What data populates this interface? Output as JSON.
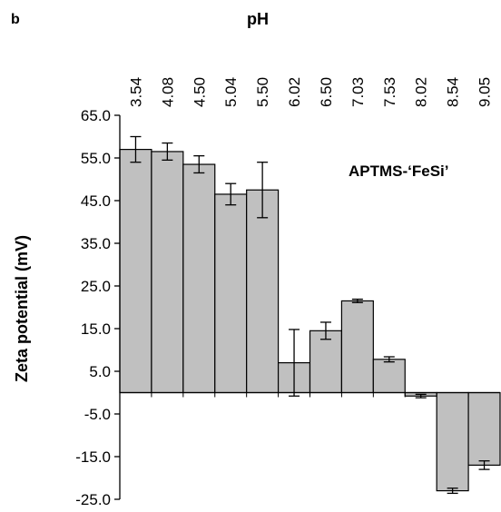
{
  "panel_label": "b",
  "annotation": "APTMS-‘FeSi’",
  "colors": {
    "bar_fill": "#c0c0c0",
    "bar_stroke": "#000000",
    "axis": "#000000"
  },
  "chart_data": {
    "type": "bar",
    "xlabel": "pH",
    "ylabel": "Zeta potential (mV)",
    "ylim": [
      -25,
      65
    ],
    "yticks": [
      "65.0",
      "55.0",
      "45.0",
      "35.0",
      "25.0",
      "15.0",
      "5.0",
      "-5.0",
      "-15.0",
      "-25.0"
    ],
    "categories": [
      "3.54",
      "4.08",
      "4.50",
      "5.04",
      "5.50",
      "6.02",
      "6.50",
      "7.03",
      "7.53",
      "8.02",
      "8.54",
      "9.05"
    ],
    "values": [
      57,
      56.5,
      53.5,
      46.5,
      47.5,
      7,
      14.5,
      21.5,
      7.8,
      -0.8,
      -23,
      -17
    ],
    "errors": [
      3,
      2,
      2,
      2.5,
      6.5,
      7.8,
      2,
      0.4,
      0.6,
      0.4,
      0.6,
      1
    ],
    "grid": false,
    "legend": "none",
    "annotations": [
      "APTMS-‘FeSi’"
    ]
  }
}
